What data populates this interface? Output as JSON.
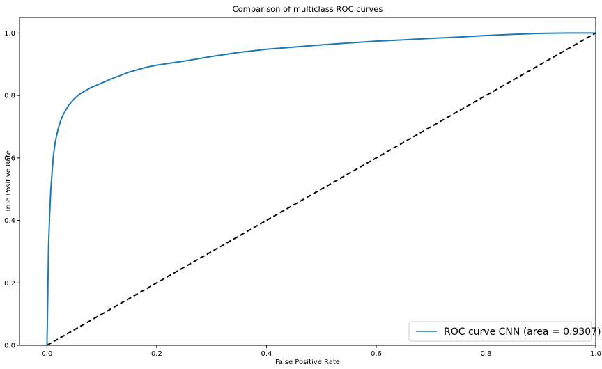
{
  "chart_data": {
    "type": "line",
    "title": "Comparison of multiclass ROC curves",
    "xlabel": "False Positive Rate",
    "ylabel": "True Positive Rate",
    "xlim": [
      -0.05,
      1.0
    ],
    "ylim": [
      0.0,
      1.05
    ],
    "x_ticks": [
      "0.0",
      "0.2",
      "0.4",
      "0.6",
      "0.8",
      "1.0"
    ],
    "y_ticks": [
      "0.0",
      "0.2",
      "0.4",
      "0.6",
      "0.8",
      "1.0"
    ],
    "x_tick_values": [
      0.0,
      0.2,
      0.4,
      0.6,
      0.8,
      1.0
    ],
    "y_tick_values": [
      0.0,
      0.2,
      0.4,
      0.6,
      0.8,
      1.0
    ],
    "grid": false,
    "legend_position": "lower right",
    "series": [
      {
        "name": "ROC curve CNN (area = 0.9307)",
        "color": "#1f77b4",
        "style": "solid",
        "x": [
          0.0,
          0.001,
          0.002,
          0.003,
          0.005,
          0.007,
          0.01,
          0.012,
          0.015,
          0.02,
          0.025,
          0.03,
          0.035,
          0.04,
          0.05,
          0.06,
          0.07,
          0.08,
          0.1,
          0.12,
          0.15,
          0.18,
          0.2,
          0.25,
          0.3,
          0.35,
          0.4,
          0.45,
          0.5,
          0.55,
          0.6,
          0.65,
          0.7,
          0.75,
          0.8,
          0.85,
          0.9,
          0.95,
          1.0
        ],
        "y": [
          0.0,
          0.1,
          0.22,
          0.32,
          0.42,
          0.5,
          0.57,
          0.61,
          0.65,
          0.69,
          0.72,
          0.74,
          0.755,
          0.77,
          0.79,
          0.805,
          0.815,
          0.825,
          0.84,
          0.855,
          0.875,
          0.89,
          0.897,
          0.91,
          0.925,
          0.938,
          0.948,
          0.955,
          0.962,
          0.968,
          0.974,
          0.978,
          0.983,
          0.987,
          0.992,
          0.996,
          0.999,
          1.0,
          1.0
        ]
      },
      {
        "name": "",
        "color": "#000000",
        "style": "dashed",
        "x": [
          0.0,
          1.0
        ],
        "y": [
          0.0,
          1.0
        ]
      }
    ]
  }
}
